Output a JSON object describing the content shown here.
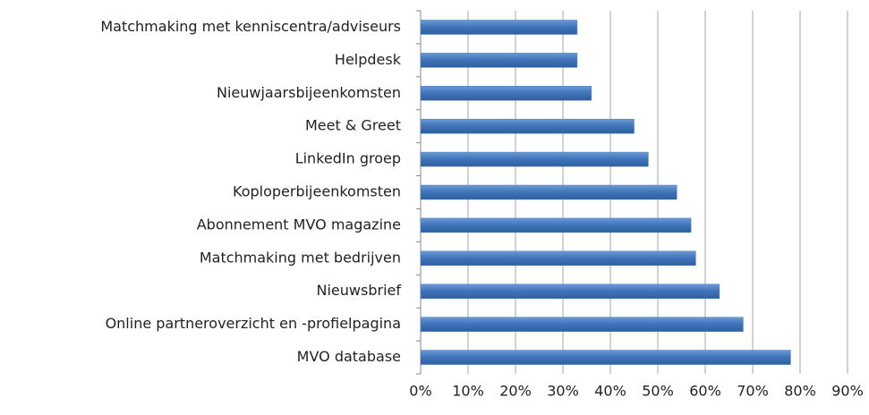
{
  "chart_data": {
    "type": "hbar",
    "categories": [
      "Matchmaking met kenniscentra/adviseurs",
      "Helpdesk",
      "Nieuwjaarsbijeenkomsten",
      "Meet & Greet",
      "LinkedIn groep",
      "Koploperbijeenkomsten",
      "Abonnement MVO magazine",
      "Matchmaking met bedrijven",
      "Nieuwsbrief",
      "Online partneroverzicht en -profielpagina",
      "MVO database"
    ],
    "values": [
      33,
      33,
      36,
      45,
      48,
      54,
      57,
      58,
      63,
      68,
      78
    ],
    "color": "#4a7ebb",
    "xlim": [
      0,
      90
    ],
    "xticks": [
      {
        "value": 0,
        "label": "0%"
      },
      {
        "value": 10,
        "label": "10%"
      },
      {
        "value": 20,
        "label": "20%"
      },
      {
        "value": 30,
        "label": "30%"
      },
      {
        "value": 40,
        "label": "40%"
      },
      {
        "value": 50,
        "label": "50%"
      },
      {
        "value": 60,
        "label": "60%"
      },
      {
        "value": 70,
        "label": "70%"
      },
      {
        "value": 80,
        "label": "80%"
      },
      {
        "value": 90,
        "label": "90%"
      }
    ],
    "grid": true
  }
}
